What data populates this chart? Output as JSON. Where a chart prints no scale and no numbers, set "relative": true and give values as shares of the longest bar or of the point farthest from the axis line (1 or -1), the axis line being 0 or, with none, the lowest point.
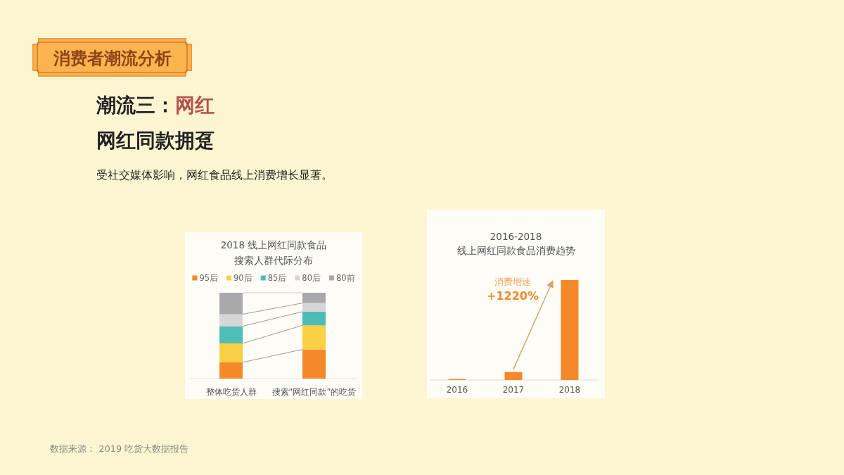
{
  "chart_data": [
    {
      "type": "other",
      "title": "消费者潮流分析",
      "subtitle": "潮流三：网红",
      "annotations": [
        "网红同款拥趸",
        "受社交媒体影响，网红食品线上消费增长显著。",
        "数据来源： 2019 吃货大数据报告"
      ]
    },
    {
      "type": "bar",
      "title": "2018 线上网红同款食品搜索人群代际分布",
      "categories": [
        "整体吃货人群",
        "搜索“网红同款”的吃货"
      ],
      "stacked": true,
      "relative": true,
      "legend": "top",
      "series": [
        {
          "name": "95后",
          "color": "#f5892a",
          "values": [
            0.19,
            0.34
          ]
        },
        {
          "name": "90后",
          "color": "#f9cf45",
          "values": [
            0.22,
            0.28
          ]
        },
        {
          "name": "85后",
          "color": "#4dbdb5",
          "values": [
            0.2,
            0.16
          ]
        },
        {
          "name": "80后",
          "color": "#d6d6d6",
          "values": [
            0.14,
            0.1
          ]
        },
        {
          "name": "80前",
          "color": "#a9a9ad",
          "values": [
            0.25,
            0.12
          ]
        }
      ]
    },
    {
      "type": "bar",
      "title": "2016-2018\n线上网红同款食品消费趋势",
      "categories": [
        "2016",
        "2017",
        "2018"
      ],
      "values": [
        0.01,
        0.08,
        1
      ],
      "color": "#f5892a",
      "relative": true,
      "annotations": [
        "消费增速",
        "+1220%"
      ]
    }
  ]
}
